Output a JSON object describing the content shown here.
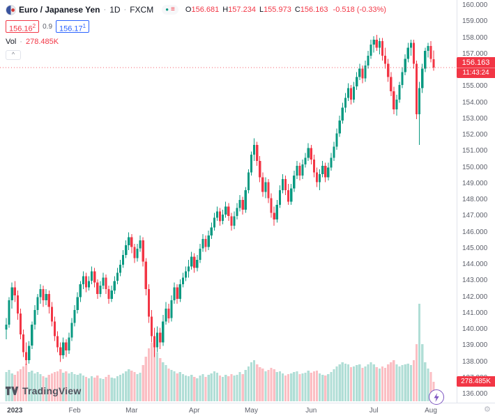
{
  "header": {
    "symbol_title": "Euro / Japanese Yen",
    "separator": "·",
    "interval": "1D",
    "exchange": "FXCM",
    "ohlc": {
      "o_label": "O",
      "o": "156.681",
      "h_label": "H",
      "h": "157.234",
      "l_label": "L",
      "l": "155.973",
      "c_label": "C",
      "c": "156.163",
      "change": "-0.518 (-0.33%)"
    },
    "bid": {
      "main": "156.16",
      "sup": "2"
    },
    "spread": "0.9",
    "ask": {
      "main": "156.17",
      "sup": "1"
    },
    "vol_label": "Vol",
    "vol_value": "278.485K",
    "collapse_glyph": "^"
  },
  "price_label": {
    "price": "156.163",
    "countdown": "11:43:24"
  },
  "volume_label": {
    "value": "278.485K"
  },
  "logo": {
    "text": "TradingView"
  },
  "corner": {
    "gear_glyph": "⚙"
  },
  "chart_data": {
    "type": "candlestick",
    "title": "Euro / Japanese Yen, 1D, FXCM",
    "ylim": [
      136,
      160
    ],
    "y_tick_step": 1,
    "price_decimals": 3,
    "grid": false,
    "current_price": 156.163,
    "current_volume_k": 278.485,
    "colors": {
      "up": "#089981",
      "down": "#F23645",
      "vol_up": "rgba(8,153,129,0.32)",
      "vol_down": "rgba(242,54,69,0.32)",
      "price_line": "#F23645"
    },
    "x_axis_labels": [
      {
        "label": "2023",
        "i": 3
      },
      {
        "label": "Feb",
        "i": 24
      },
      {
        "label": "Mar",
        "i": 44
      },
      {
        "label": "Apr",
        "i": 66
      },
      {
        "label": "May",
        "i": 86
      },
      {
        "label": "Jun",
        "i": 107
      },
      {
        "label": "Jul",
        "i": 129
      },
      {
        "label": "Aug",
        "i": 149
      }
    ],
    "candles": [
      [
        140.0,
        140.7,
        139.4,
        140.3,
        420
      ],
      [
        140.3,
        142.0,
        140.1,
        141.8,
        450
      ],
      [
        141.8,
        142.9,
        141.3,
        142.6,
        400
      ],
      [
        142.6,
        143.0,
        141.7,
        142.1,
        380
      ],
      [
        142.1,
        142.4,
        140.6,
        141.0,
        430
      ],
      [
        141.0,
        141.3,
        139.4,
        139.7,
        460
      ],
      [
        139.7,
        140.0,
        138.3,
        138.6,
        500
      ],
      [
        138.6,
        139.2,
        137.8,
        138.1,
        540
      ],
      [
        138.1,
        139.3,
        137.9,
        139.0,
        420
      ],
      [
        139.0,
        140.5,
        138.8,
        140.3,
        440
      ],
      [
        140.3,
        141.5,
        140.0,
        141.2,
        400
      ],
      [
        141.2,
        142.2,
        140.9,
        142.0,
        420
      ],
      [
        142.0,
        142.8,
        141.6,
        142.5,
        390
      ],
      [
        142.5,
        142.7,
        141.4,
        141.8,
        360
      ],
      [
        141.8,
        142.5,
        141.5,
        142.2,
        340
      ],
      [
        142.2,
        142.4,
        141.0,
        141.4,
        380
      ],
      [
        141.4,
        141.7,
        140.2,
        140.5,
        400
      ],
      [
        140.5,
        140.8,
        139.3,
        139.6,
        420
      ],
      [
        139.6,
        139.9,
        138.6,
        138.9,
        430
      ],
      [
        138.9,
        139.2,
        138.0,
        138.4,
        460
      ],
      [
        138.4,
        139.5,
        138.2,
        139.2,
        410
      ],
      [
        139.2,
        139.4,
        138.3,
        138.7,
        430
      ],
      [
        138.7,
        139.8,
        138.5,
        139.5,
        400
      ],
      [
        139.5,
        140.7,
        139.3,
        140.4,
        420
      ],
      [
        140.4,
        141.5,
        140.2,
        141.2,
        390
      ],
      [
        141.2,
        142.3,
        141.0,
        142.0,
        380
      ],
      [
        142.0,
        143.0,
        141.7,
        142.8,
        400
      ],
      [
        142.8,
        143.6,
        142.5,
        143.3,
        370
      ],
      [
        143.3,
        143.5,
        142.3,
        142.6,
        350
      ],
      [
        142.6,
        143.3,
        142.4,
        143.0,
        330
      ],
      [
        143.0,
        143.9,
        142.8,
        143.6,
        360
      ],
      [
        143.6,
        143.8,
        142.6,
        142.9,
        340
      ],
      [
        142.9,
        143.1,
        141.9,
        142.2,
        370
      ],
      [
        142.2,
        143.0,
        142.0,
        142.7,
        330
      ],
      [
        142.7,
        143.5,
        142.5,
        143.2,
        320
      ],
      [
        143.2,
        143.4,
        142.2,
        142.5,
        350
      ],
      [
        142.5,
        142.7,
        141.6,
        141.9,
        380
      ],
      [
        141.9,
        142.7,
        141.7,
        142.4,
        340
      ],
      [
        142.4,
        143.3,
        142.2,
        143.0,
        330
      ],
      [
        143.0,
        143.8,
        142.8,
        143.5,
        360
      ],
      [
        143.5,
        144.3,
        143.3,
        144.0,
        380
      ],
      [
        144.0,
        144.9,
        143.8,
        144.6,
        400
      ],
      [
        144.6,
        145.5,
        144.4,
        145.2,
        430
      ],
      [
        145.2,
        146.0,
        144.9,
        145.7,
        460
      ],
      [
        145.7,
        145.9,
        144.7,
        145.1,
        440
      ],
      [
        145.1,
        145.3,
        144.1,
        144.4,
        420
      ],
      [
        144.4,
        145.3,
        144.2,
        145.0,
        390
      ],
      [
        145.0,
        145.8,
        144.8,
        145.5,
        410
      ],
      [
        145.5,
        145.7,
        143.9,
        144.2,
        520
      ],
      [
        144.2,
        144.4,
        142.1,
        142.5,
        640
      ],
      [
        142.5,
        142.8,
        140.4,
        140.8,
        760
      ],
      [
        140.8,
        141.2,
        139.2,
        139.6,
        840
      ],
      [
        139.6,
        140.1,
        138.3,
        138.9,
        800
      ],
      [
        138.9,
        140.2,
        138.6,
        139.8,
        700
      ],
      [
        139.8,
        140.1,
        138.8,
        139.2,
        620
      ],
      [
        139.2,
        140.9,
        139.0,
        140.5,
        560
      ],
      [
        140.5,
        141.7,
        140.3,
        141.3,
        520
      ],
      [
        141.3,
        141.6,
        140.4,
        140.7,
        470
      ],
      [
        140.7,
        142.1,
        140.5,
        141.8,
        450
      ],
      [
        141.8,
        142.9,
        141.6,
        142.6,
        430
      ],
      [
        142.6,
        142.8,
        141.6,
        141.9,
        400
      ],
      [
        141.9,
        143.1,
        141.7,
        142.8,
        420
      ],
      [
        142.8,
        143.5,
        142.6,
        143.2,
        390
      ],
      [
        143.2,
        143.9,
        143.0,
        143.6,
        370
      ],
      [
        143.6,
        144.3,
        143.2,
        143.9,
        360
      ],
      [
        143.9,
        144.8,
        143.7,
        144.5,
        380
      ],
      [
        144.5,
        144.7,
        143.5,
        143.8,
        350
      ],
      [
        143.8,
        144.6,
        143.6,
        144.3,
        330
      ],
      [
        144.3,
        145.3,
        144.1,
        145.0,
        370
      ],
      [
        145.0,
        145.9,
        144.8,
        145.6,
        390
      ],
      [
        145.6,
        145.8,
        144.8,
        145.1,
        350
      ],
      [
        145.1,
        146.1,
        144.9,
        145.8,
        380
      ],
      [
        145.8,
        146.6,
        145.6,
        146.3,
        400
      ],
      [
        146.3,
        147.2,
        146.1,
        146.9,
        430
      ],
      [
        146.9,
        147.6,
        146.7,
        147.3,
        410
      ],
      [
        147.3,
        147.5,
        146.4,
        146.7,
        370
      ],
      [
        146.7,
        147.4,
        146.5,
        147.1,
        350
      ],
      [
        147.1,
        147.9,
        146.9,
        147.6,
        380
      ],
      [
        147.6,
        147.8,
        146.7,
        147.0,
        360
      ],
      [
        147.0,
        147.2,
        146.1,
        146.4,
        390
      ],
      [
        146.4,
        147.3,
        146.2,
        147.0,
        370
      ],
      [
        147.0,
        147.8,
        146.8,
        147.5,
        380
      ],
      [
        147.5,
        148.3,
        147.3,
        148.0,
        420
      ],
      [
        148.0,
        148.2,
        147.1,
        147.4,
        390
      ],
      [
        147.4,
        148.8,
        147.2,
        148.6,
        450
      ],
      [
        148.6,
        149.9,
        148.4,
        149.7,
        500
      ],
      [
        149.7,
        151.0,
        149.5,
        150.8,
        560
      ],
      [
        150.8,
        151.8,
        150.4,
        151.4,
        590
      ],
      [
        151.4,
        151.6,
        150.1,
        150.4,
        530
      ],
      [
        150.4,
        150.7,
        149.1,
        149.4,
        490
      ],
      [
        149.4,
        149.7,
        148.2,
        148.5,
        470
      ],
      [
        148.5,
        149.4,
        148.1,
        149.1,
        430
      ],
      [
        149.1,
        149.3,
        147.8,
        148.1,
        450
      ],
      [
        148.1,
        148.4,
        146.9,
        147.2,
        480
      ],
      [
        147.2,
        147.6,
        146.4,
        146.8,
        460
      ],
      [
        146.8,
        148.0,
        146.6,
        147.7,
        420
      ],
      [
        147.7,
        148.9,
        147.5,
        148.6,
        430
      ],
      [
        148.6,
        149.6,
        148.4,
        149.3,
        400
      ],
      [
        149.3,
        149.5,
        148.3,
        148.6,
        370
      ],
      [
        148.6,
        149.0,
        147.7,
        147.9,
        390
      ],
      [
        147.9,
        149.0,
        147.7,
        148.7,
        400
      ],
      [
        148.7,
        149.8,
        148.5,
        149.5,
        420
      ],
      [
        149.5,
        150.4,
        149.3,
        150.1,
        430
      ],
      [
        150.1,
        150.3,
        149.2,
        149.5,
        390
      ],
      [
        149.5,
        150.5,
        149.3,
        150.2,
        400
      ],
      [
        150.2,
        150.9,
        150.0,
        150.6,
        410
      ],
      [
        150.6,
        151.5,
        150.4,
        151.2,
        440
      ],
      [
        151.2,
        151.4,
        150.2,
        150.5,
        410
      ],
      [
        150.5,
        150.8,
        149.4,
        149.7,
        430
      ],
      [
        149.7,
        150.0,
        148.8,
        149.1,
        440
      ],
      [
        149.1,
        149.9,
        148.6,
        149.6,
        400
      ],
      [
        149.6,
        150.4,
        149.4,
        150.1,
        380
      ],
      [
        150.1,
        150.3,
        149.1,
        149.4,
        370
      ],
      [
        149.4,
        150.3,
        149.2,
        150.0,
        390
      ],
      [
        150.0,
        150.9,
        149.8,
        150.6,
        420
      ],
      [
        150.6,
        151.6,
        150.4,
        151.3,
        460
      ],
      [
        151.3,
        152.4,
        151.1,
        152.1,
        500
      ],
      [
        152.1,
        153.2,
        151.9,
        152.9,
        530
      ],
      [
        152.9,
        154.0,
        152.7,
        153.7,
        560
      ],
      [
        153.7,
        154.6,
        153.4,
        154.3,
        540
      ],
      [
        154.3,
        155.2,
        154.1,
        154.9,
        530
      ],
      [
        154.9,
        155.1,
        153.9,
        154.2,
        490
      ],
      [
        154.2,
        155.3,
        154.0,
        155.0,
        500
      ],
      [
        155.0,
        155.9,
        154.8,
        155.6,
        520
      ],
      [
        155.6,
        156.4,
        155.4,
        156.1,
        530
      ],
      [
        156.1,
        156.3,
        155.2,
        155.5,
        480
      ],
      [
        155.5,
        156.6,
        155.3,
        156.3,
        500
      ],
      [
        156.3,
        157.2,
        156.1,
        156.9,
        530
      ],
      [
        156.9,
        157.9,
        156.7,
        157.6,
        560
      ],
      [
        157.6,
        158.1,
        157.1,
        157.9,
        530
      ],
      [
        157.9,
        158.2,
        157.2,
        157.4,
        490
      ],
      [
        157.4,
        158.0,
        157.0,
        157.8,
        470
      ],
      [
        157.8,
        158.0,
        156.6,
        156.9,
        500
      ],
      [
        156.9,
        157.4,
        156.1,
        156.4,
        480
      ],
      [
        156.4,
        156.7,
        155.3,
        155.6,
        530
      ],
      [
        155.6,
        155.9,
        154.4,
        154.7,
        560
      ],
      [
        154.7,
        155.0,
        153.3,
        153.6,
        590
      ],
      [
        153.6,
        154.5,
        153.2,
        154.2,
        530
      ],
      [
        154.2,
        155.3,
        154.0,
        155.1,
        500
      ],
      [
        155.1,
        156.2,
        154.9,
        155.9,
        520
      ],
      [
        155.9,
        157.0,
        155.7,
        156.7,
        530
      ],
      [
        156.7,
        157.7,
        156.5,
        157.4,
        540
      ],
      [
        157.4,
        157.9,
        156.9,
        157.7,
        520
      ],
      [
        157.7,
        157.9,
        156.1,
        156.4,
        590
      ],
      [
        156.4,
        156.6,
        153.0,
        153.3,
        820
      ],
      [
        153.3,
        155.3,
        151.4,
        154.9,
        1400
      ],
      [
        154.9,
        156.4,
        154.6,
        156.1,
        820
      ],
      [
        156.1,
        157.4,
        155.9,
        157.2,
        560
      ],
      [
        157.2,
        157.7,
        156.8,
        157.5,
        470
      ],
      [
        157.5,
        157.8,
        156.5,
        156.7,
        420
      ],
      [
        156.681,
        157.234,
        155.973,
        156.163,
        278
      ]
    ]
  }
}
